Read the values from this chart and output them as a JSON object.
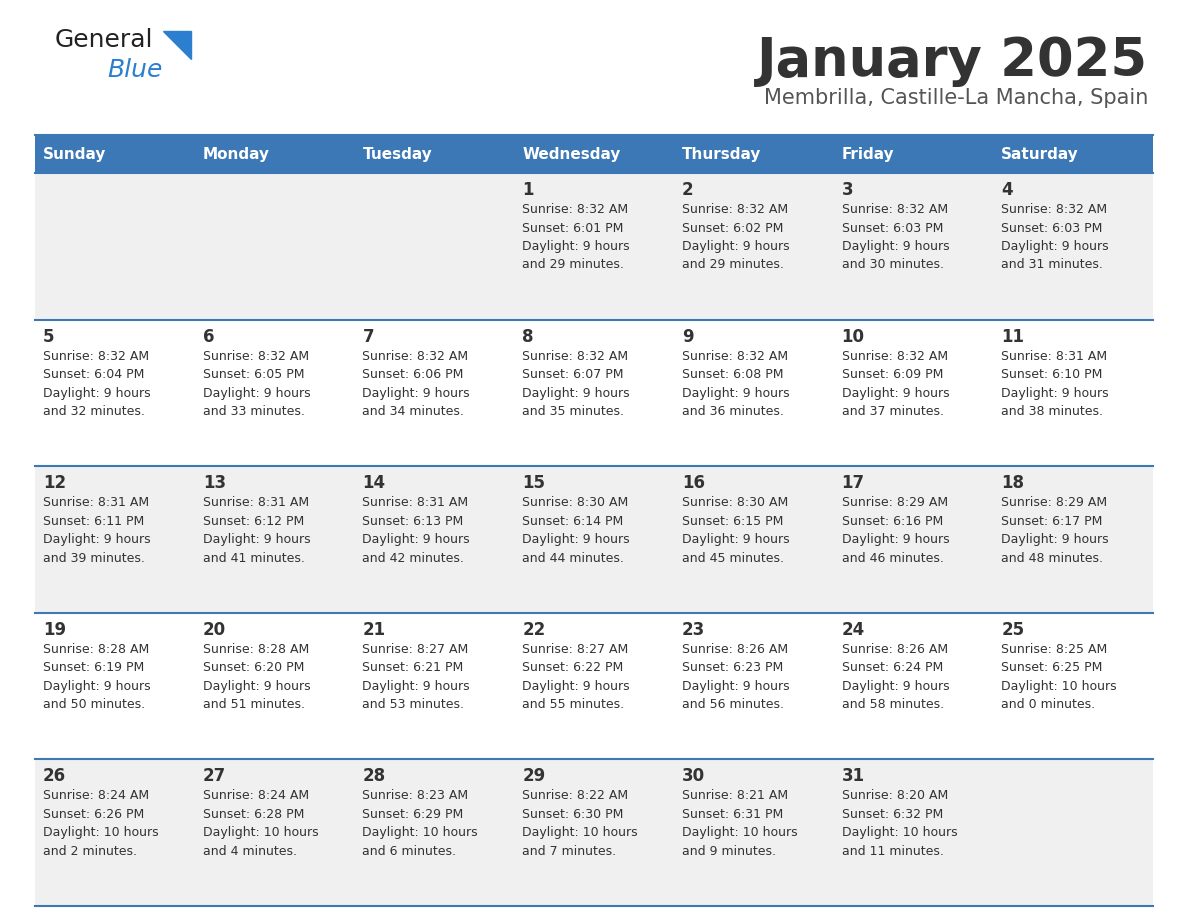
{
  "title": "January 2025",
  "subtitle": "Membrilla, Castille-La Mancha, Spain",
  "days_of_week": [
    "Sunday",
    "Monday",
    "Tuesday",
    "Wednesday",
    "Thursday",
    "Friday",
    "Saturday"
  ],
  "header_bg": "#3b78b5",
  "header_text": "#ffffff",
  "row_bg_odd": "#f0f0f0",
  "row_bg_even": "#ffffff",
  "cell_border": "#3b78b5",
  "day_num_color": "#333333",
  "cell_text_color": "#333333",
  "title_color": "#333333",
  "subtitle_color": "#555555",
  "weeks": [
    [
      {
        "day": null,
        "sunrise": null,
        "sunset": null,
        "daylight": null
      },
      {
        "day": null,
        "sunrise": null,
        "sunset": null,
        "daylight": null
      },
      {
        "day": null,
        "sunrise": null,
        "sunset": null,
        "daylight": null
      },
      {
        "day": 1,
        "sunrise": "8:32 AM",
        "sunset": "6:01 PM",
        "daylight": "9 hours\nand 29 minutes."
      },
      {
        "day": 2,
        "sunrise": "8:32 AM",
        "sunset": "6:02 PM",
        "daylight": "9 hours\nand 29 minutes."
      },
      {
        "day": 3,
        "sunrise": "8:32 AM",
        "sunset": "6:03 PM",
        "daylight": "9 hours\nand 30 minutes."
      },
      {
        "day": 4,
        "sunrise": "8:32 AM",
        "sunset": "6:03 PM",
        "daylight": "9 hours\nand 31 minutes."
      }
    ],
    [
      {
        "day": 5,
        "sunrise": "8:32 AM",
        "sunset": "6:04 PM",
        "daylight": "9 hours\nand 32 minutes."
      },
      {
        "day": 6,
        "sunrise": "8:32 AM",
        "sunset": "6:05 PM",
        "daylight": "9 hours\nand 33 minutes."
      },
      {
        "day": 7,
        "sunrise": "8:32 AM",
        "sunset": "6:06 PM",
        "daylight": "9 hours\nand 34 minutes."
      },
      {
        "day": 8,
        "sunrise": "8:32 AM",
        "sunset": "6:07 PM",
        "daylight": "9 hours\nand 35 minutes."
      },
      {
        "day": 9,
        "sunrise": "8:32 AM",
        "sunset": "6:08 PM",
        "daylight": "9 hours\nand 36 minutes."
      },
      {
        "day": 10,
        "sunrise": "8:32 AM",
        "sunset": "6:09 PM",
        "daylight": "9 hours\nand 37 minutes."
      },
      {
        "day": 11,
        "sunrise": "8:31 AM",
        "sunset": "6:10 PM",
        "daylight": "9 hours\nand 38 minutes."
      }
    ],
    [
      {
        "day": 12,
        "sunrise": "8:31 AM",
        "sunset": "6:11 PM",
        "daylight": "9 hours\nand 39 minutes."
      },
      {
        "day": 13,
        "sunrise": "8:31 AM",
        "sunset": "6:12 PM",
        "daylight": "9 hours\nand 41 minutes."
      },
      {
        "day": 14,
        "sunrise": "8:31 AM",
        "sunset": "6:13 PM",
        "daylight": "9 hours\nand 42 minutes."
      },
      {
        "day": 15,
        "sunrise": "8:30 AM",
        "sunset": "6:14 PM",
        "daylight": "9 hours\nand 44 minutes."
      },
      {
        "day": 16,
        "sunrise": "8:30 AM",
        "sunset": "6:15 PM",
        "daylight": "9 hours\nand 45 minutes."
      },
      {
        "day": 17,
        "sunrise": "8:29 AM",
        "sunset": "6:16 PM",
        "daylight": "9 hours\nand 46 minutes."
      },
      {
        "day": 18,
        "sunrise": "8:29 AM",
        "sunset": "6:17 PM",
        "daylight": "9 hours\nand 48 minutes."
      }
    ],
    [
      {
        "day": 19,
        "sunrise": "8:28 AM",
        "sunset": "6:19 PM",
        "daylight": "9 hours\nand 50 minutes."
      },
      {
        "day": 20,
        "sunrise": "8:28 AM",
        "sunset": "6:20 PM",
        "daylight": "9 hours\nand 51 minutes."
      },
      {
        "day": 21,
        "sunrise": "8:27 AM",
        "sunset": "6:21 PM",
        "daylight": "9 hours\nand 53 minutes."
      },
      {
        "day": 22,
        "sunrise": "8:27 AM",
        "sunset": "6:22 PM",
        "daylight": "9 hours\nand 55 minutes."
      },
      {
        "day": 23,
        "sunrise": "8:26 AM",
        "sunset": "6:23 PM",
        "daylight": "9 hours\nand 56 minutes."
      },
      {
        "day": 24,
        "sunrise": "8:26 AM",
        "sunset": "6:24 PM",
        "daylight": "9 hours\nand 58 minutes."
      },
      {
        "day": 25,
        "sunrise": "8:25 AM",
        "sunset": "6:25 PM",
        "daylight": "10 hours\nand 0 minutes."
      }
    ],
    [
      {
        "day": 26,
        "sunrise": "8:24 AM",
        "sunset": "6:26 PM",
        "daylight": "10 hours\nand 2 minutes."
      },
      {
        "day": 27,
        "sunrise": "8:24 AM",
        "sunset": "6:28 PM",
        "daylight": "10 hours\nand 4 minutes."
      },
      {
        "day": 28,
        "sunrise": "8:23 AM",
        "sunset": "6:29 PM",
        "daylight": "10 hours\nand 6 minutes."
      },
      {
        "day": 29,
        "sunrise": "8:22 AM",
        "sunset": "6:30 PM",
        "daylight": "10 hours\nand 7 minutes."
      },
      {
        "day": 30,
        "sunrise": "8:21 AM",
        "sunset": "6:31 PM",
        "daylight": "10 hours\nand 9 minutes."
      },
      {
        "day": 31,
        "sunrise": "8:20 AM",
        "sunset": "6:32 PM",
        "daylight": "10 hours\nand 11 minutes."
      },
      {
        "day": null,
        "sunrise": null,
        "sunset": null,
        "daylight": null
      }
    ]
  ]
}
